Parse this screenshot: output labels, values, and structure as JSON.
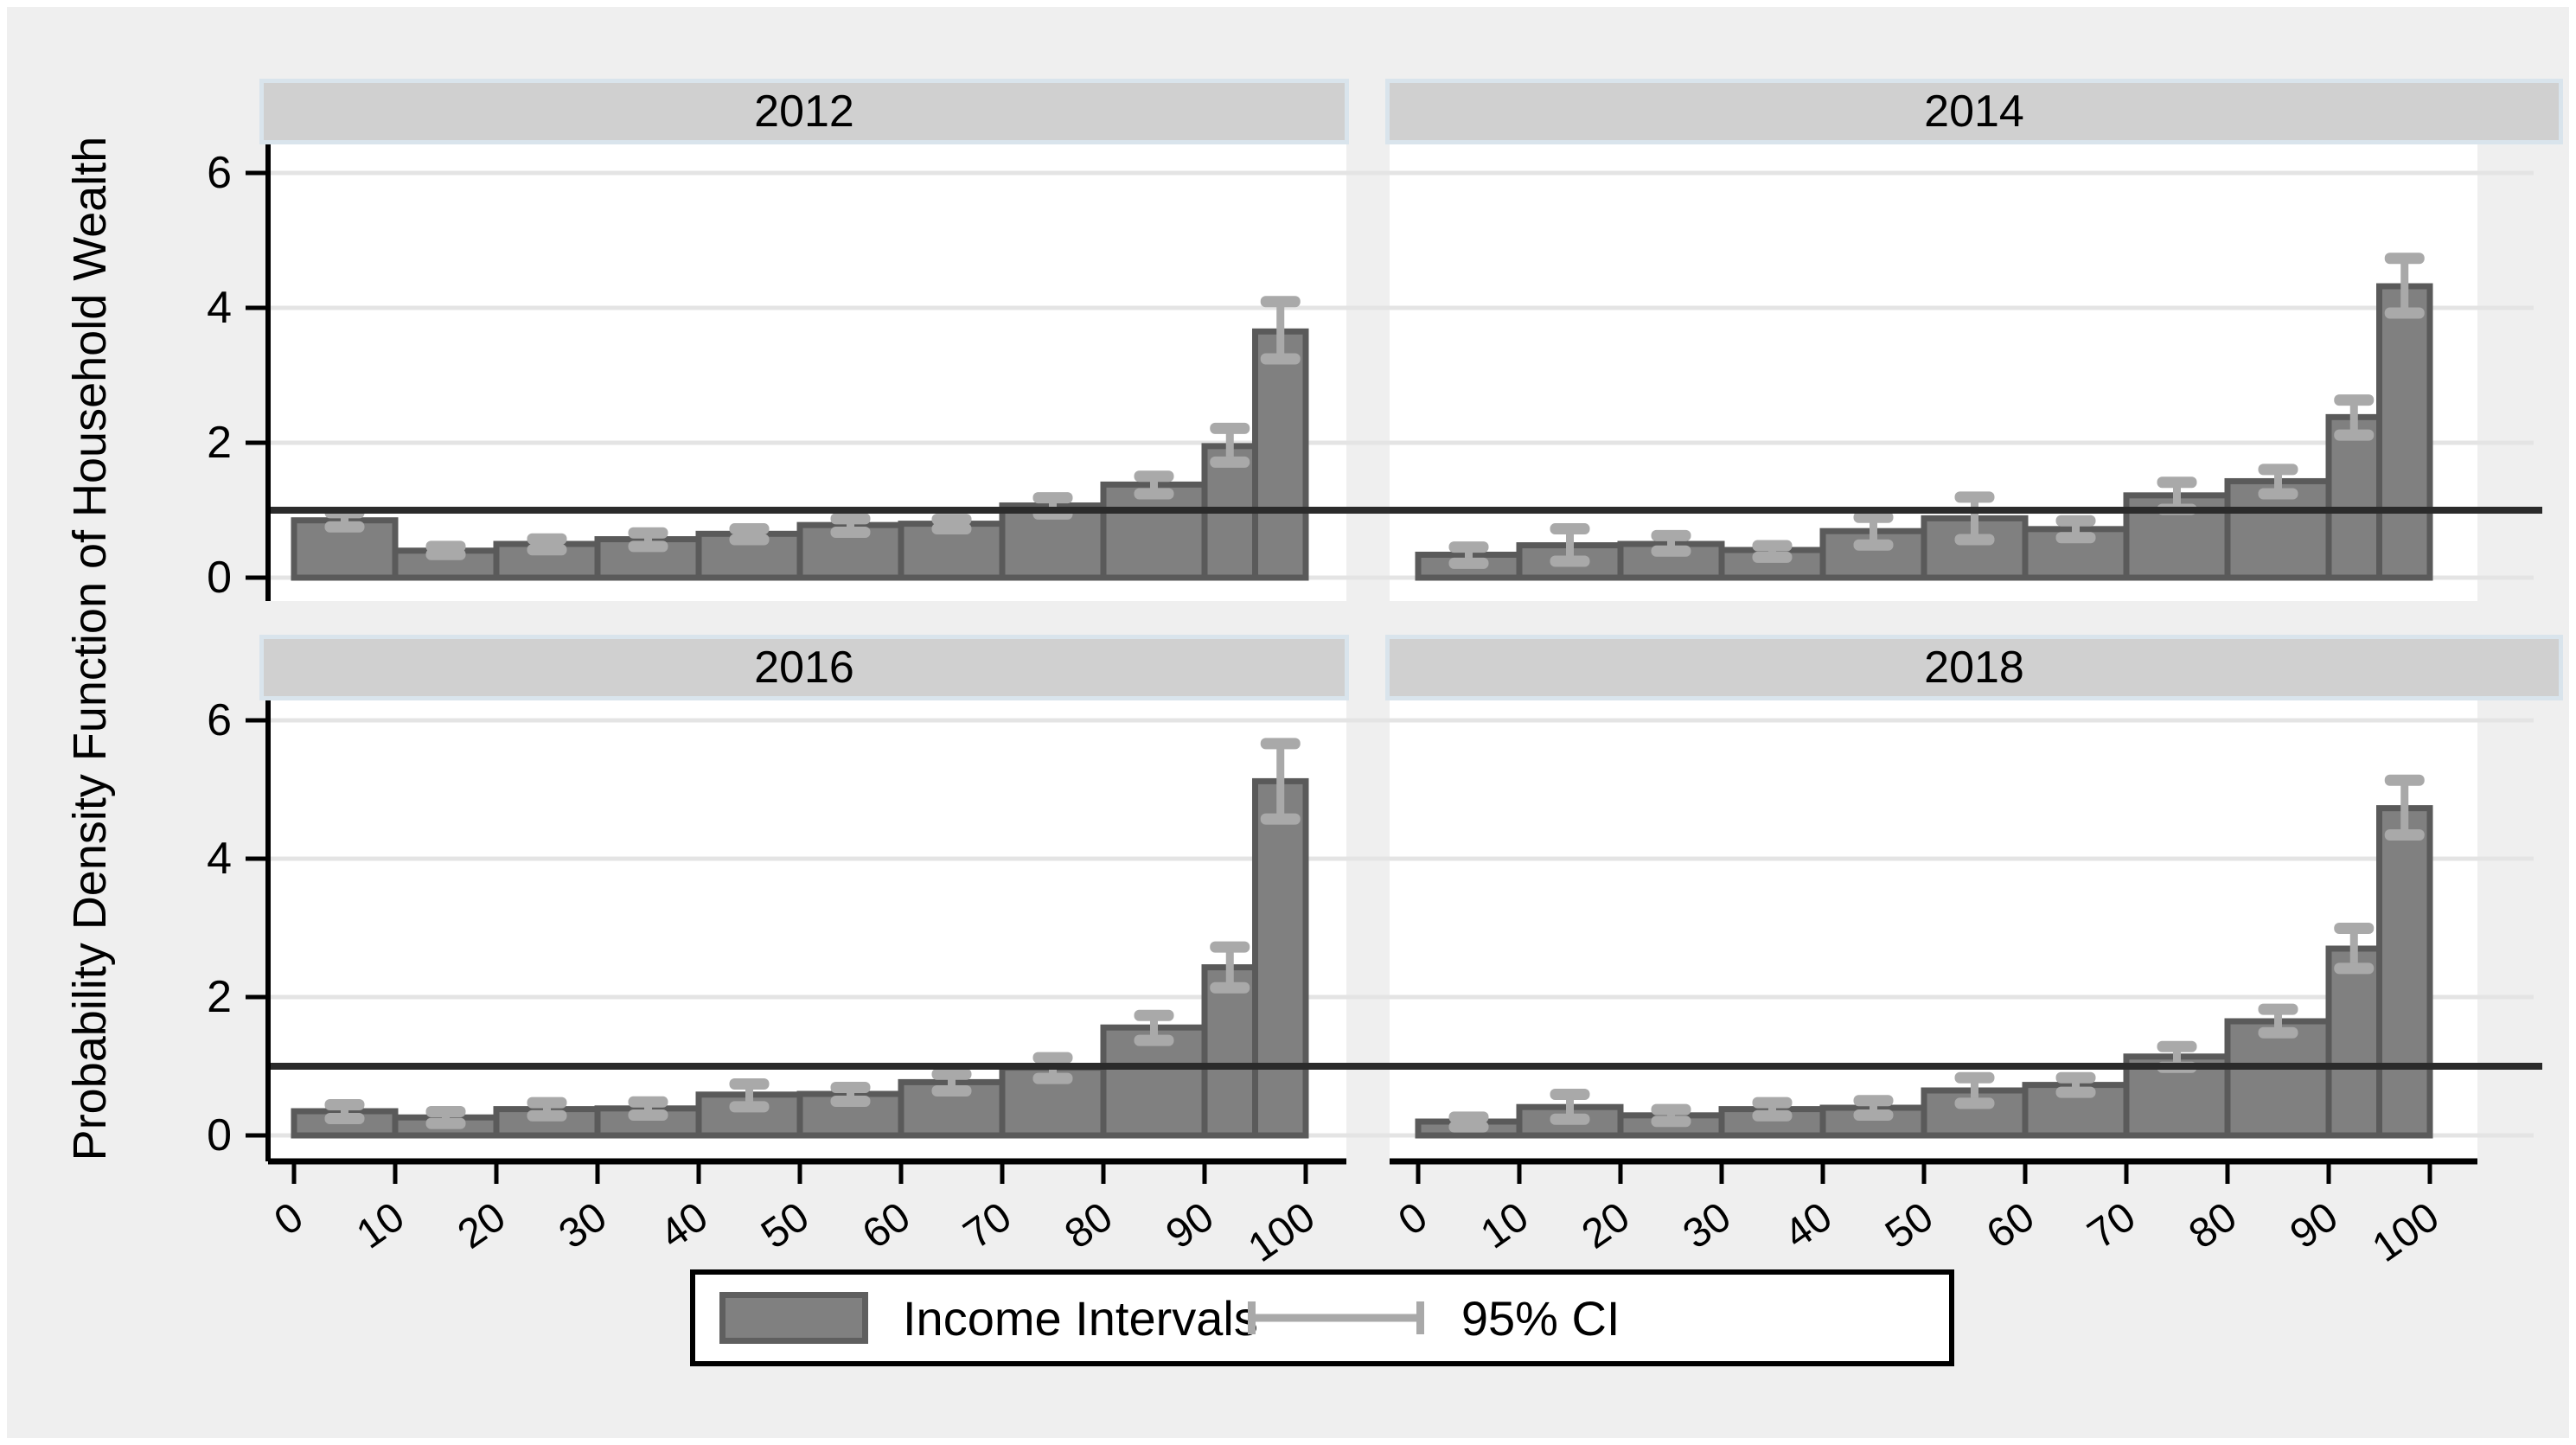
{
  "figure": {
    "y_axis_title": "Probability Density Function of Household Wealth",
    "legend": {
      "series_label": "Income Intervals",
      "ci_label": "95% CI"
    },
    "colors": {
      "page_bg": "#efefef",
      "plot_bg": "#ffffff",
      "header_bg": "#d0d0d0",
      "header_border": "#d9e4ec",
      "grid": "#e4e4e4",
      "axis": "#000000",
      "reference_line": "#2b2b2b",
      "bar_fill": "#808080",
      "bar_border": "#5a5a5a",
      "ci": "#a9a9a9"
    }
  },
  "chart_data": {
    "type": "bar",
    "title": "",
    "xlabel": "",
    "ylabel": "Probability Density Function of Household Wealth",
    "ylim": [
      0,
      6.4
    ],
    "y_ticks": [
      0,
      2,
      4,
      6
    ],
    "x_ticks": [
      0,
      10,
      20,
      30,
      40,
      50,
      60,
      70,
      80,
      90,
      100
    ],
    "grid": true,
    "legend_position": "bottom",
    "reference_line_y": 1,
    "bins": [
      [
        0,
        10
      ],
      [
        10,
        20
      ],
      [
        20,
        30
      ],
      [
        30,
        40
      ],
      [
        40,
        50
      ],
      [
        50,
        60
      ],
      [
        60,
        70
      ],
      [
        70,
        80
      ],
      [
        80,
        90
      ],
      [
        90,
        95
      ],
      [
        95,
        100
      ]
    ],
    "bin_labels": [
      "0-10",
      "10-20",
      "20-30",
      "30-40",
      "40-50",
      "50-60",
      "60-70",
      "70-80",
      "80-90",
      "90-95",
      "95-100"
    ],
    "series_label": "Income Intervals",
    "ci_label": "95% CI",
    "panels": [
      {
        "label": "2012",
        "values": [
          0.85,
          0.4,
          0.5,
          0.57,
          0.65,
          0.78,
          0.8,
          1.07,
          1.38,
          1.95,
          3.65
        ],
        "ci_low": [
          0.76,
          0.35,
          0.42,
          0.47,
          0.57,
          0.68,
          0.73,
          0.95,
          1.25,
          1.72,
          3.25
        ],
        "ci_high": [
          0.97,
          0.47,
          0.58,
          0.67,
          0.73,
          0.88,
          0.87,
          1.19,
          1.51,
          2.22,
          4.1
        ]
      },
      {
        "label": "2014",
        "values": [
          0.34,
          0.48,
          0.5,
          0.41,
          0.69,
          0.88,
          0.72,
          1.22,
          1.43,
          2.38,
          4.32
        ],
        "ci_low": [
          0.22,
          0.25,
          0.4,
          0.31,
          0.49,
          0.57,
          0.6,
          1.02,
          1.25,
          2.12,
          3.93
        ],
        "ci_high": [
          0.46,
          0.73,
          0.63,
          0.48,
          0.9,
          1.2,
          0.85,
          1.42,
          1.61,
          2.64,
          4.74
        ]
      },
      {
        "label": "2016",
        "values": [
          0.35,
          0.26,
          0.38,
          0.39,
          0.59,
          0.6,
          0.77,
          0.98,
          1.56,
          2.43,
          5.12
        ],
        "ci_low": [
          0.25,
          0.18,
          0.29,
          0.3,
          0.42,
          0.5,
          0.65,
          0.83,
          1.38,
          2.14,
          4.58
        ],
        "ci_high": [
          0.45,
          0.35,
          0.48,
          0.49,
          0.75,
          0.7,
          0.89,
          1.13,
          1.74,
          2.73,
          5.67
        ]
      },
      {
        "label": "2018",
        "values": [
          0.2,
          0.41,
          0.29,
          0.38,
          0.4,
          0.65,
          0.73,
          1.14,
          1.65,
          2.7,
          4.73
        ],
        "ci_low": [
          0.13,
          0.24,
          0.21,
          0.29,
          0.3,
          0.47,
          0.63,
          0.99,
          1.49,
          2.42,
          4.35
        ],
        "ci_high": [
          0.27,
          0.6,
          0.38,
          0.48,
          0.51,
          0.84,
          0.84,
          1.29,
          1.83,
          3.0,
          5.14
        ]
      }
    ]
  }
}
